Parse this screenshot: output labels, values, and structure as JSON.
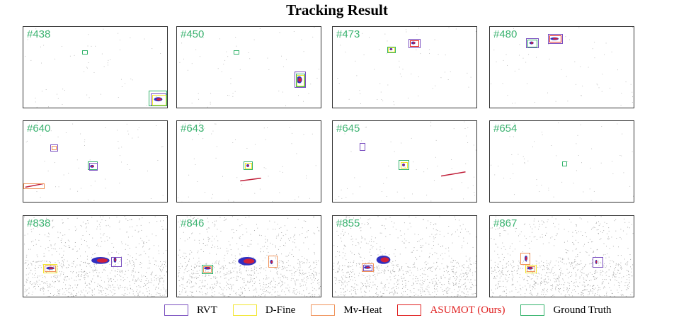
{
  "title": "Tracking Result",
  "colors": {
    "rvt": "#7a4fc0",
    "dfine": "#f2e630",
    "mvheat": "#f0935a",
    "asumot": "#e02020",
    "gt": "#33b36b",
    "label": "#3cb371"
  },
  "panels": [
    {
      "label": "#438",
      "boxes": [
        {
          "m": "gt",
          "x": 83,
          "y": 33,
          "w": 8,
          "h": 6
        },
        {
          "m": "gt",
          "x": 177,
          "y": 90,
          "w": 26,
          "h": 22
        },
        {
          "m": "rvt",
          "x": 180,
          "y": 94,
          "w": 22,
          "h": 17
        },
        {
          "m": "dfine",
          "x": 182,
          "y": 96,
          "w": 20,
          "h": 15
        }
      ],
      "blobs": [
        {
          "x": 193,
          "y": 104,
          "rx": 6,
          "ry": 3
        }
      ]
    },
    {
      "label": "#450",
      "boxes": [
        {
          "m": "gt",
          "x": 80,
          "y": 33,
          "w": 8,
          "h": 6
        },
        {
          "m": "rvt",
          "x": 166,
          "y": 63,
          "w": 16,
          "h": 23
        },
        {
          "m": "gt",
          "x": 168,
          "y": 66,
          "w": 13,
          "h": 19
        },
        {
          "m": "dfine",
          "x": 169,
          "y": 68,
          "w": 11,
          "h": 16
        }
      ],
      "blobs": [
        {
          "x": 175,
          "y": 76,
          "rx": 4,
          "ry": 5
        }
      ]
    },
    {
      "label": "#473",
      "boxes": [
        {
          "m": "gt",
          "x": 77,
          "y": 28,
          "w": 12,
          "h": 9
        },
        {
          "m": "dfine",
          "x": 78,
          "y": 29,
          "w": 10,
          "h": 7
        },
        {
          "m": "rvt",
          "x": 107,
          "y": 17,
          "w": 17,
          "h": 13
        },
        {
          "m": "asumot",
          "x": 109,
          "y": 19,
          "w": 13,
          "h": 9
        }
      ],
      "blobs": [
        {
          "x": 115,
          "y": 23,
          "rx": 3,
          "ry": 2
        },
        {
          "x": 83,
          "y": 32,
          "rx": 2,
          "ry": 1.5
        }
      ]
    },
    {
      "label": "#480",
      "boxes": [
        {
          "m": "rvt",
          "x": 51,
          "y": 16,
          "w": 18,
          "h": 14
        },
        {
          "m": "gt",
          "x": 53,
          "y": 18,
          "w": 14,
          "h": 11
        },
        {
          "m": "rvt",
          "x": 82,
          "y": 10,
          "w": 21,
          "h": 14
        },
        {
          "m": "asumot",
          "x": 84,
          "y": 12,
          "w": 17,
          "h": 10
        }
      ],
      "blobs": [
        {
          "x": 92,
          "y": 17,
          "rx": 6,
          "ry": 2
        },
        {
          "x": 59,
          "y": 23,
          "rx": 3,
          "ry": 2
        }
      ]
    },
    {
      "label": "#640",
      "boxes": [
        {
          "m": "rvt",
          "x": 38,
          "y": 33,
          "w": 11,
          "h": 10
        },
        {
          "m": "mvheat",
          "x": 40,
          "y": 35,
          "w": 7,
          "h": 6
        },
        {
          "m": "gt",
          "x": 91,
          "y": 57,
          "w": 14,
          "h": 12
        },
        {
          "m": "rvt",
          "x": 93,
          "y": 59,
          "w": 12,
          "h": 11
        },
        {
          "m": "mvheat",
          "x": 0,
          "y": 88,
          "w": 30,
          "h": 8
        }
      ],
      "blobs": [
        {
          "x": 98,
          "y": 65,
          "rx": 3,
          "ry": 2
        }
      ],
      "lines": [
        {
          "x1": 2,
          "y1": 95,
          "x2": 28,
          "y2": 90
        }
      ]
    },
    {
      "label": "#643",
      "boxes": [
        {
          "m": "gt",
          "x": 94,
          "y": 57,
          "w": 13,
          "h": 12
        },
        {
          "m": "dfine",
          "x": 96,
          "y": 59,
          "w": 10,
          "h": 9
        }
      ],
      "blobs": [
        {
          "x": 101,
          "y": 64,
          "rx": 2,
          "ry": 2
        }
      ],
      "lines": [
        {
          "x1": 90,
          "y1": 86,
          "x2": 120,
          "y2": 82
        }
      ]
    },
    {
      "label": "#645",
      "boxes": [
        {
          "m": "rvt",
          "x": 38,
          "y": 31,
          "w": 8,
          "h": 11
        },
        {
          "m": "gt",
          "x": 93,
          "y": 55,
          "w": 15,
          "h": 14
        },
        {
          "m": "dfine",
          "x": 96,
          "y": 58,
          "w": 10,
          "h": 9
        }
      ],
      "blobs": [
        {
          "x": 101,
          "y": 63,
          "rx": 2,
          "ry": 2
        }
      ],
      "lines": [
        {
          "x1": 155,
          "y1": 79,
          "x2": 190,
          "y2": 73
        }
      ]
    },
    {
      "label": "#654",
      "boxes": [
        {
          "m": "gt",
          "x": 102,
          "y": 57,
          "w": 7,
          "h": 7
        }
      ],
      "blobs": [],
      "lines": []
    },
    {
      "label": "#838",
      "boxes": [
        {
          "m": "dfine",
          "x": 28,
          "y": 68,
          "w": 20,
          "h": 13
        },
        {
          "m": "mvheat",
          "x": 30,
          "y": 70,
          "w": 16,
          "h": 9
        },
        {
          "m": "rvt",
          "x": 124,
          "y": 58,
          "w": 15,
          "h": 14
        }
      ],
      "blobs": [
        {
          "x": 110,
          "y": 64,
          "rx": 13,
          "ry": 5
        },
        {
          "x": 38,
          "y": 75,
          "rx": 6,
          "ry": 2
        },
        {
          "x": 131,
          "y": 63,
          "rx": 2,
          "ry": 4
        }
      ]
    },
    {
      "label": "#846",
      "boxes": [
        {
          "m": "gt",
          "x": 35,
          "y": 69,
          "w": 16,
          "h": 13
        },
        {
          "m": "mvheat",
          "x": 37,
          "y": 71,
          "w": 12,
          "h": 9
        },
        {
          "m": "mvheat",
          "x": 129,
          "y": 56,
          "w": 13,
          "h": 17
        }
      ],
      "blobs": [
        {
          "x": 100,
          "y": 65,
          "rx": 13,
          "ry": 6
        },
        {
          "x": 43,
          "y": 75,
          "rx": 5,
          "ry": 2
        },
        {
          "x": 135,
          "y": 66,
          "rx": 2,
          "ry": 3
        }
      ]
    },
    {
      "label": "#855",
      "boxes": [
        {
          "m": "mvheat",
          "x": 41,
          "y": 67,
          "w": 17,
          "h": 12
        },
        {
          "m": "rvt",
          "x": 43,
          "y": 69,
          "w": 13,
          "h": 9
        }
      ],
      "blobs": [
        {
          "x": 72,
          "y": 63,
          "rx": 10,
          "ry": 6
        },
        {
          "x": 49,
          "y": 74,
          "rx": 5,
          "ry": 2
        }
      ]
    },
    {
      "label": "#867",
      "boxes": [
        {
          "m": "mvheat",
          "x": 43,
          "y": 52,
          "w": 14,
          "h": 17
        },
        {
          "m": "dfine",
          "x": 50,
          "y": 69,
          "w": 16,
          "h": 12
        },
        {
          "m": "mvheat",
          "x": 52,
          "y": 71,
          "w": 12,
          "h": 8
        },
        {
          "m": "rvt",
          "x": 145,
          "y": 58,
          "w": 15,
          "h": 15
        }
      ],
      "blobs": [
        {
          "x": 57,
          "y": 75,
          "rx": 4,
          "ry": 2
        },
        {
          "x": 152,
          "y": 66,
          "rx": 1.5,
          "ry": 3
        },
        {
          "x": 51,
          "y": 61,
          "rx": 2,
          "ry": 4
        }
      ]
    }
  ],
  "legend": [
    {
      "label": "RVT",
      "color_key": "rvt",
      "text_color": "#000000"
    },
    {
      "label": "D-Fine",
      "color_key": "dfine",
      "text_color": "#000000"
    },
    {
      "label": "Mv-Heat",
      "color_key": "mvheat",
      "text_color": "#000000"
    },
    {
      "label": "ASUMOT (Ours)",
      "color_key": "asumot",
      "text_color": "#e02020"
    },
    {
      "label": "Ground Truth",
      "color_key": "gt",
      "text_color": "#000000"
    }
  ]
}
